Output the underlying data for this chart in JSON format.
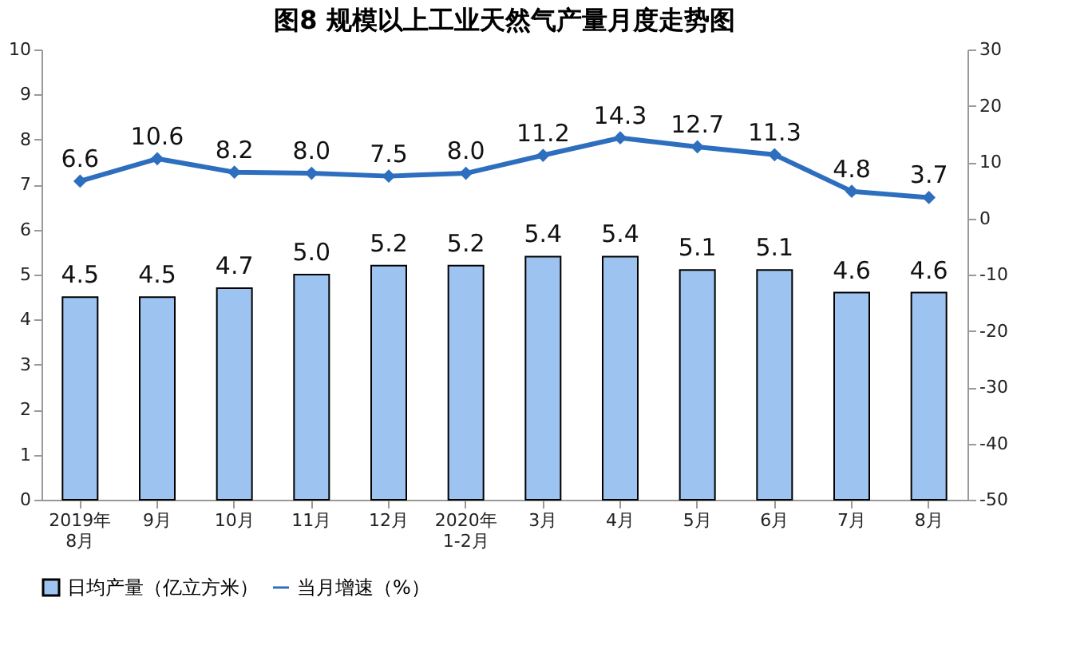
{
  "chart_data": {
    "type": "bar",
    "title": "图8  规模以上工业天然气产量月度走势图",
    "categories": [
      "2019年\n8月",
      "9月",
      "10月",
      "11月",
      "12月",
      "2020年\n1-2月",
      "3月",
      "4月",
      "5月",
      "6月",
      "7月",
      "8月"
    ],
    "series": [
      {
        "name": "日均产量（亿立方米）",
        "color": "#9dc3f0",
        "values": [
          4.5,
          4.5,
          4.7,
          5.0,
          5.2,
          5.2,
          5.4,
          5.4,
          5.1,
          5.1,
          4.6,
          4.6
        ],
        "value_labels": [
          "4.5",
          "4.5",
          "4.7",
          "5.0",
          "5.2",
          "5.2",
          "5.4",
          "5.4",
          "5.1",
          "5.1",
          "4.6",
          "4.6"
        ]
      },
      {
        "name": "当月增速（%）",
        "type": "line",
        "axis": "y2",
        "color": "#2e6ebf",
        "marker": "diamond",
        "values": [
          6.6,
          10.6,
          8.2,
          8.0,
          7.5,
          8.0,
          11.2,
          14.3,
          12.7,
          11.3,
          4.8,
          3.7
        ],
        "value_labels": [
          "6.6",
          "10.6",
          "8.2",
          "8.0",
          "7.5",
          "8.0",
          "11.2",
          "14.3",
          "12.7",
          "11.3",
          "4.8",
          "3.7"
        ]
      }
    ],
    "ylim": [
      0,
      10
    ],
    "yticks": [
      0,
      1,
      2,
      3,
      4,
      5,
      6,
      7,
      8,
      9,
      10
    ],
    "y2lim": [
      -50,
      30
    ],
    "y2ticks": [
      -50,
      -40,
      -30,
      -20,
      -10,
      0,
      10,
      20,
      30
    ],
    "legend": "bottom",
    "grid": false
  }
}
